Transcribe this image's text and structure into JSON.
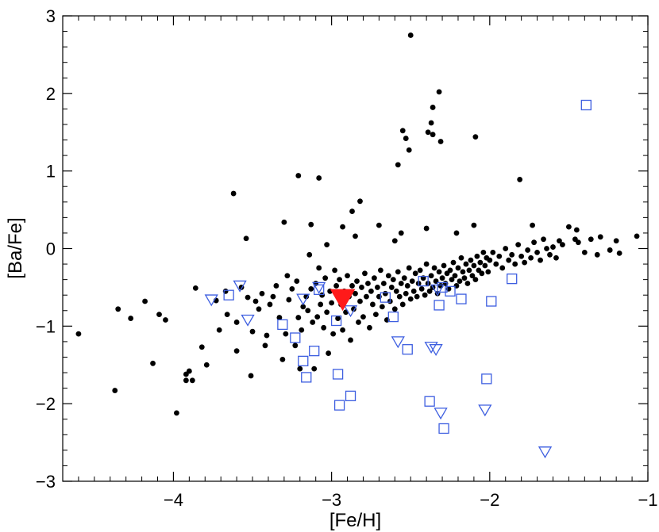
{
  "chart_data": {
    "type": "scatter",
    "xlabel": "[Fe/H]",
    "ylabel": "[Ba/Fe]",
    "xlim": [
      -4.7,
      -1.0
    ],
    "ylim": [
      -3.0,
      3.0
    ],
    "xticks": [
      -4,
      -3,
      -2,
      -1
    ],
    "yticks": [
      -3,
      -2,
      -1,
      0,
      1,
      2,
      3
    ],
    "xtick_labels": [
      "−4",
      "−3",
      "−2",
      "−1"
    ],
    "ytick_labels": [
      "−3",
      "−2",
      "−1",
      "0",
      "1",
      "2",
      "3"
    ],
    "grid": false,
    "legend": "none",
    "colors": {
      "dots": "#000000",
      "open_markers": "#3d5ee0",
      "highlight": "#ff1a1a"
    },
    "series": [
      {
        "marker": "filled-circle",
        "points": [
          [
            -4.6,
            -1.1
          ],
          [
            -4.35,
            -0.78
          ],
          [
            -4.37,
            -1.83
          ],
          [
            -4.27,
            -0.9
          ],
          [
            -4.18,
            -0.68
          ],
          [
            -4.13,
            -1.48
          ],
          [
            -4.09,
            -0.85
          ],
          [
            -4.05,
            -0.92
          ],
          [
            -3.98,
            -2.12
          ],
          [
            -3.92,
            -1.62
          ],
          [
            -3.92,
            -1.7
          ],
          [
            -3.9,
            -1.58
          ],
          [
            -3.88,
            -1.7
          ],
          [
            -3.86,
            -0.51
          ],
          [
            -3.82,
            -1.27
          ],
          [
            -3.79,
            -1.5
          ],
          [
            -3.73,
            -0.67
          ],
          [
            -3.71,
            -1.05
          ],
          [
            -3.67,
            -0.55
          ],
          [
            -3.66,
            -0.85
          ],
          [
            -3.62,
            0.71
          ],
          [
            -3.6,
            -1.32
          ],
          [
            -3.6,
            -0.95
          ],
          [
            -3.57,
            -0.5
          ],
          [
            -3.54,
            0.13
          ],
          [
            -3.53,
            -0.63
          ],
          [
            -3.51,
            -1.64
          ],
          [
            -3.5,
            -1.07
          ],
          [
            -3.48,
            -0.68
          ],
          [
            -3.46,
            -0.78
          ],
          [
            -3.44,
            -0.58
          ],
          [
            -3.42,
            -1.25
          ],
          [
            -3.41,
            -1.12
          ],
          [
            -3.39,
            -0.72
          ],
          [
            -3.37,
            -0.62
          ],
          [
            -3.35,
            -0.48
          ],
          [
            -3.33,
            -0.89
          ],
          [
            -3.31,
            -1.43
          ],
          [
            -3.29,
            -1.1
          ],
          [
            -3.28,
            -0.35
          ],
          [
            -3.27,
            -0.66
          ],
          [
            -3.25,
            -0.52
          ],
          [
            -3.23,
            -1.25
          ],
          [
            -3.22,
            -0.42
          ],
          [
            -3.21,
            -0.89
          ],
          [
            -3.2,
            -1.55
          ],
          [
            -3.19,
            -1.05
          ],
          [
            -3.18,
            -0.75
          ],
          [
            -3.16,
            -0.62
          ],
          [
            -3.15,
            -0.8
          ],
          [
            -3.14,
            -0.08
          ],
          [
            -3.13,
            -0.52
          ],
          [
            -3.12,
            -0.95
          ],
          [
            -3.11,
            -1.55
          ],
          [
            -3.1,
            -0.45
          ],
          [
            -3.09,
            -0.88
          ],
          [
            -3.08,
            -0.25
          ],
          [
            -3.07,
            -0.72
          ],
          [
            -3.06,
            -0.6
          ],
          [
            -3.05,
            -1.02
          ],
          [
            -3.04,
            -0.38
          ],
          [
            -3.03,
            -0.82
          ],
          [
            -3.02,
            -1.35
          ],
          [
            -3.01,
            -0.55
          ],
          [
            -3.0,
            -0.7
          ],
          [
            -2.99,
            -1.1
          ],
          [
            -2.98,
            -0.28
          ],
          [
            -2.97,
            -0.48
          ],
          [
            -2.96,
            -0.9
          ],
          [
            -2.95,
            -0.4
          ],
          [
            -2.94,
            -0.72
          ],
          [
            -2.93,
            -1.05
          ],
          [
            -2.92,
            -0.55
          ],
          [
            -2.91,
            -0.82
          ],
          [
            -2.9,
            -0.35
          ],
          [
            -2.89,
            -0.62
          ],
          [
            -2.88,
            -1.18
          ],
          [
            -2.87,
            -0.48
          ],
          [
            -2.86,
            -0.78
          ],
          [
            -2.85,
            -0.58
          ],
          [
            -2.84,
            -0.42
          ],
          [
            -2.83,
            -0.95
          ],
          [
            -2.82,
            -0.68
          ],
          [
            -2.81,
            -0.5
          ],
          [
            -2.8,
            -0.88
          ],
          [
            -2.79,
            -0.32
          ],
          [
            -2.78,
            -0.62
          ],
          [
            -2.77,
            -0.45
          ],
          [
            -2.76,
            -1.02
          ],
          [
            -2.75,
            -0.55
          ],
          [
            -2.74,
            -0.72
          ],
          [
            -2.73,
            -0.38
          ],
          [
            -2.72,
            -0.85
          ],
          [
            -2.71,
            -0.5
          ],
          [
            -2.7,
            -0.62
          ],
          [
            -2.69,
            -0.28
          ],
          [
            -2.68,
            -0.75
          ],
          [
            -2.67,
            -0.45
          ],
          [
            -2.66,
            -0.58
          ],
          [
            -2.65,
            -0.92
          ],
          [
            -2.64,
            -0.35
          ],
          [
            -2.63,
            -0.68
          ],
          [
            -2.62,
            -0.5
          ],
          [
            -2.61,
            -0.4
          ],
          [
            -2.6,
            -0.78
          ],
          [
            -2.59,
            -0.55
          ],
          [
            -2.58,
            -0.3
          ],
          [
            -2.57,
            -0.62
          ],
          [
            -2.56,
            -0.45
          ],
          [
            -2.55,
            -0.72
          ],
          [
            -2.54,
            -0.38
          ],
          [
            -2.53,
            -0.58
          ],
          [
            -2.52,
            -0.48
          ],
          [
            -2.51,
            -0.25
          ],
          [
            -2.5,
            -0.65
          ],
          [
            -2.49,
            -0.42
          ],
          [
            -2.48,
            -0.55
          ],
          [
            -2.47,
            -0.32
          ],
          [
            -2.46,
            -0.62
          ],
          [
            -2.45,
            -0.45
          ],
          [
            -2.44,
            -0.28
          ],
          [
            -2.43,
            -0.52
          ],
          [
            -2.42,
            -0.38
          ],
          [
            -2.41,
            -0.6
          ],
          [
            -2.4,
            -0.2
          ],
          [
            -2.39,
            -0.45
          ],
          [
            -2.38,
            -0.55
          ],
          [
            -2.37,
            -0.35
          ],
          [
            -2.36,
            -0.5
          ],
          [
            -2.35,
            -0.25
          ],
          [
            -2.34,
            -0.42
          ],
          [
            -2.33,
            -0.58
          ],
          [
            -2.32,
            -0.3
          ],
          [
            -2.31,
            -0.48
          ],
          [
            -2.3,
            -0.38
          ],
          [
            -2.29,
            -0.22
          ],
          [
            -2.28,
            -0.45
          ],
          [
            -2.27,
            -0.32
          ],
          [
            -2.26,
            -0.52
          ],
          [
            -2.25,
            -0.28
          ],
          [
            -2.24,
            -0.4
          ],
          [
            -2.23,
            -0.18
          ],
          [
            -2.22,
            -0.35
          ],
          [
            -2.21,
            -0.48
          ],
          [
            -2.2,
            -0.25
          ],
          [
            -2.19,
            -0.42
          ],
          [
            -2.18,
            -0.12
          ],
          [
            -2.17,
            -0.3
          ],
          [
            -2.16,
            -0.38
          ],
          [
            -2.15,
            -0.2
          ],
          [
            -2.14,
            -0.45
          ],
          [
            -2.13,
            -0.28
          ],
          [
            -2.12,
            -0.15
          ],
          [
            -2.11,
            -0.35
          ],
          [
            -2.1,
            -0.22
          ],
          [
            -2.09,
            -0.4
          ],
          [
            -2.08,
            -0.1
          ],
          [
            -2.07,
            -0.28
          ],
          [
            -2.06,
            -0.18
          ],
          [
            -2.05,
            -0.32
          ],
          [
            -2.04,
            -0.05
          ],
          [
            -2.03,
            -0.22
          ],
          [
            -2.02,
            -0.12
          ],
          [
            -2.01,
            -0.3
          ],
          [
            -2.0,
            -0.15
          ],
          [
            -1.98,
            -0.05
          ],
          [
            -1.96,
            -0.2
          ],
          [
            -1.94,
            -0.1
          ],
          [
            -1.92,
            -0.25
          ],
          [
            -1.9,
            0.0
          ],
          [
            -1.88,
            -0.15
          ],
          [
            -1.86,
            -0.08
          ],
          [
            -1.84,
            -0.2
          ],
          [
            -1.82,
            0.05
          ],
          [
            -1.8,
            -0.1
          ],
          [
            -1.78,
            -0.18
          ],
          [
            -1.76,
            -0.02
          ],
          [
            -1.74,
            -0.12
          ],
          [
            -1.72,
            0.08
          ],
          [
            -1.7,
            -0.05
          ],
          [
            -1.68,
            -0.15
          ],
          [
            -1.66,
            0.12
          ],
          [
            -1.64,
            0.0
          ],
          [
            -1.62,
            -0.08
          ],
          [
            -1.6,
            0.02
          ],
          [
            -1.58,
            -0.12
          ],
          [
            -1.56,
            0.1
          ],
          [
            -1.54,
            0.05
          ],
          [
            -1.5,
            0.28
          ],
          [
            -1.46,
            0.12
          ],
          [
            -1.44,
            0.08
          ],
          [
            -1.4,
            -0.05
          ],
          [
            -1.36,
            0.12
          ],
          [
            -1.32,
            -0.08
          ],
          [
            -1.3,
            0.15
          ],
          [
            -1.24,
            -0.02
          ],
          [
            -1.2,
            0.1
          ],
          [
            -1.18,
            -0.06
          ],
          [
            -1.07,
            0.16
          ],
          [
            -2.5,
            2.75
          ],
          [
            -2.32,
            2.02
          ],
          [
            -2.36,
            1.82
          ],
          [
            -2.37,
            1.62
          ],
          [
            -2.39,
            1.5
          ],
          [
            -2.36,
            1.47
          ],
          [
            -2.31,
            1.38
          ],
          [
            -2.55,
            1.52
          ],
          [
            -2.53,
            1.42
          ],
          [
            -2.51,
            1.27
          ],
          [
            -2.58,
            1.08
          ],
          [
            -2.09,
            1.44
          ],
          [
            -1.81,
            0.89
          ],
          [
            -3.21,
            0.94
          ],
          [
            -3.08,
            0.91
          ],
          [
            -2.82,
            0.61
          ],
          [
            -2.87,
            0.48
          ],
          [
            -3.3,
            0.34
          ],
          [
            -3.13,
            0.31
          ],
          [
            -2.7,
            0.3
          ],
          [
            -2.93,
            0.28
          ],
          [
            -2.56,
            0.2
          ],
          [
            -2.4,
            0.26
          ],
          [
            -2.21,
            0.2
          ],
          [
            -2.1,
            0.3
          ],
          [
            -1.73,
            0.3
          ],
          [
            -1.45,
            0.24
          ],
          [
            -2.85,
            0.16
          ],
          [
            -3.03,
            0.05
          ],
          [
            -2.6,
            0.1
          ]
        ]
      },
      {
        "marker": "open-square",
        "points": [
          [
            -3.65,
            -0.6
          ],
          [
            -3.31,
            -0.98
          ],
          [
            -3.23,
            -1.15
          ],
          [
            -3.18,
            -1.45
          ],
          [
            -3.16,
            -1.66
          ],
          [
            -3.11,
            -1.32
          ],
          [
            -3.08,
            -0.53
          ],
          [
            -2.97,
            -0.93
          ],
          [
            -2.96,
            -1.62
          ],
          [
            -2.95,
            -2.02
          ],
          [
            -2.88,
            -1.9
          ],
          [
            -2.66,
            -0.63
          ],
          [
            -2.61,
            -0.88
          ],
          [
            -2.52,
            -1.3
          ],
          [
            -2.42,
            -0.42
          ],
          [
            -2.38,
            -1.97
          ],
          [
            -2.3,
            -0.5
          ],
          [
            -2.32,
            -0.73
          ],
          [
            -2.29,
            -2.32
          ],
          [
            -2.25,
            -0.55
          ],
          [
            -2.18,
            -0.65
          ],
          [
            -1.99,
            -0.68
          ],
          [
            -2.02,
            -1.68
          ],
          [
            -1.86,
            -0.39
          ],
          [
            -1.39,
            1.85
          ]
        ]
      },
      {
        "marker": "open-triangle-down",
        "points": [
          [
            -3.76,
            -0.66
          ],
          [
            -3.58,
            -0.48
          ],
          [
            -3.53,
            -0.92
          ],
          [
            -3.18,
            -0.65
          ],
          [
            -3.08,
            -0.5
          ],
          [
            -2.88,
            -0.8
          ],
          [
            -2.58,
            -1.2
          ],
          [
            -2.37,
            -1.27
          ],
          [
            -2.34,
            -1.3
          ],
          [
            -2.33,
            -0.53
          ],
          [
            -2.31,
            -2.12
          ],
          [
            -2.03,
            -2.08
          ],
          [
            -1.65,
            -2.62
          ]
        ]
      },
      {
        "marker": "filled-triangle-down",
        "points": [
          [
            -2.93,
            -0.65
          ]
        ]
      }
    ]
  }
}
